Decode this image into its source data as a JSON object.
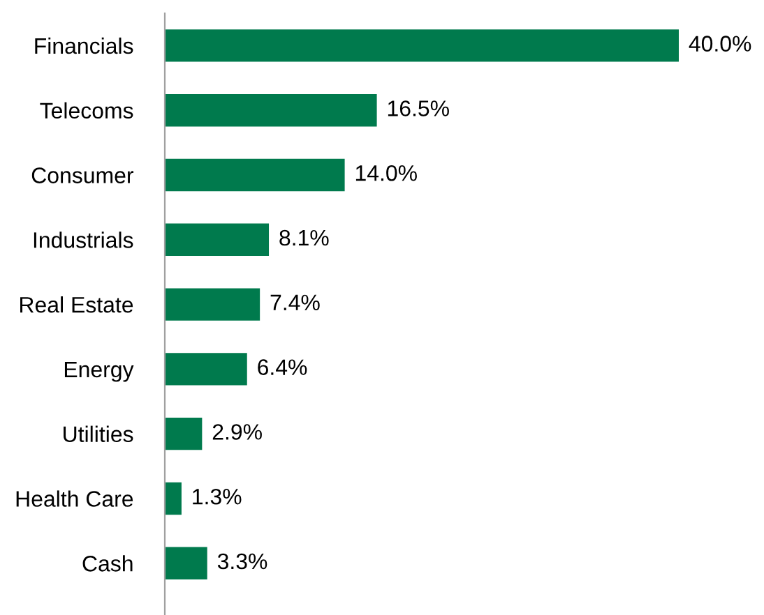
{
  "chart_data": {
    "type": "bar",
    "orientation": "horizontal",
    "categories": [
      "Financials",
      "Telecoms",
      "Consumer",
      "Industrials",
      "Real Estate",
      "Energy",
      "Utilities",
      "Health Care",
      "Cash"
    ],
    "values": [
      40.0,
      16.5,
      14.0,
      8.1,
      7.4,
      6.4,
      2.9,
      1.3,
      3.3
    ],
    "value_labels": [
      "40.0%",
      "16.5%",
      "14.0%",
      "8.1%",
      "7.4%",
      "6.4%",
      "2.9%",
      "1.3%",
      "3.3%"
    ],
    "color": "#007a4d",
    "grid": false,
    "legend": false
  }
}
